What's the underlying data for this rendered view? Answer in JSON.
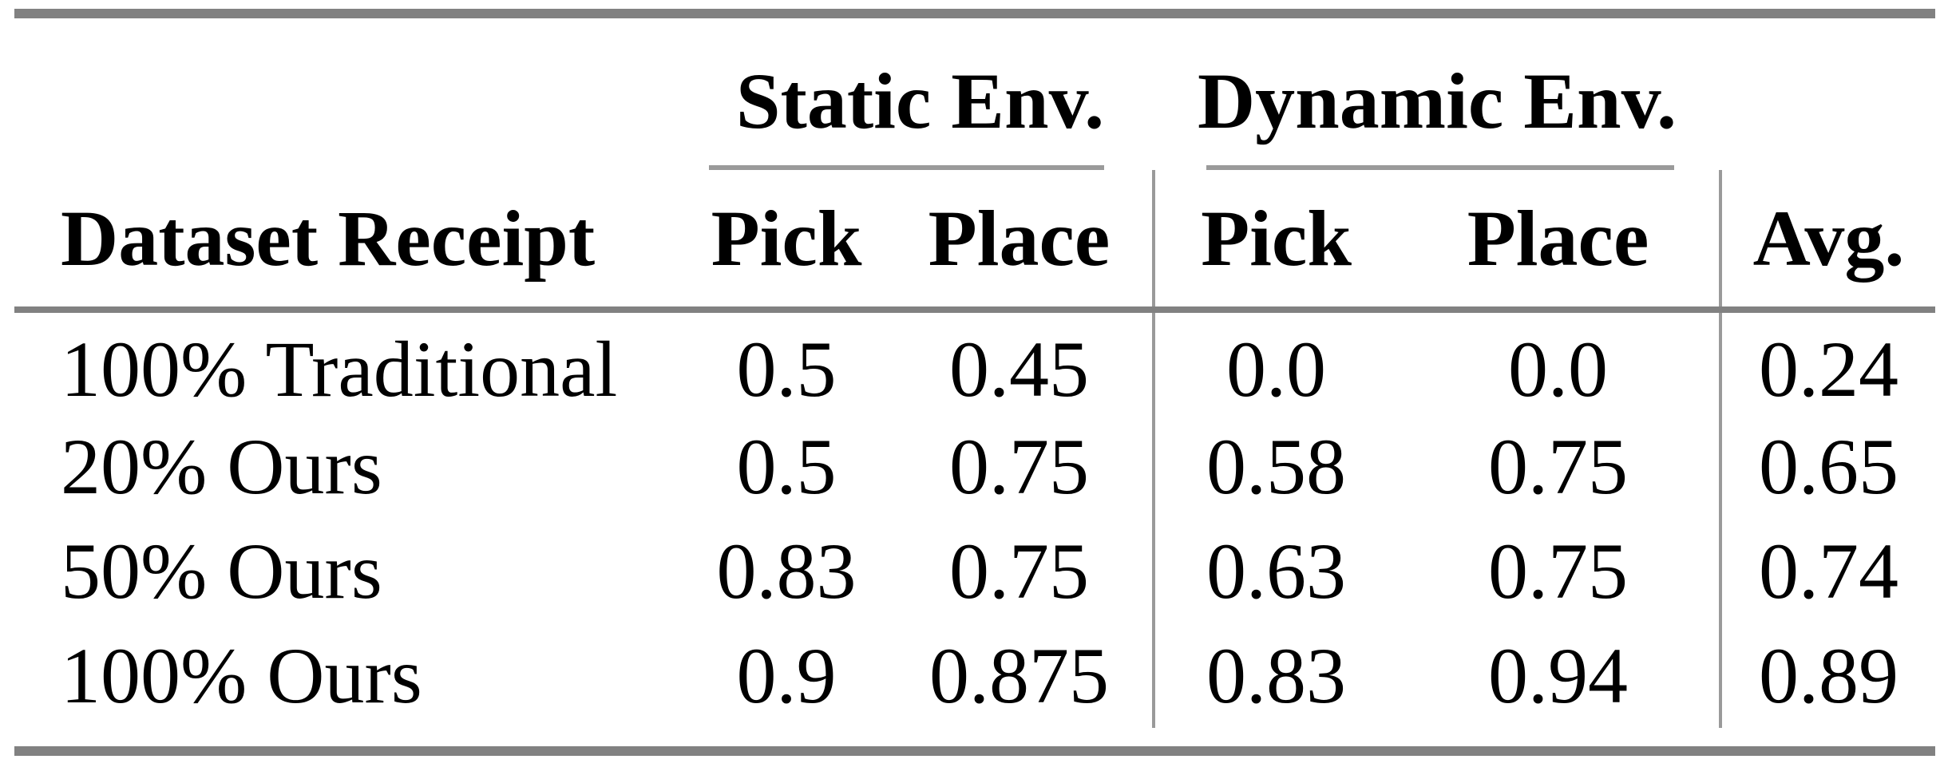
{
  "table": {
    "title_groups": {
      "static": "Static Env.",
      "dynamic": "Dynamic Env."
    },
    "header": {
      "row_label": "Dataset Receipt",
      "static_pick": "Pick",
      "static_place": "Place",
      "dynamic_pick": "Pick",
      "dynamic_place": "Place",
      "avg": "Avg."
    },
    "rows": [
      {
        "label": "100% Traditional",
        "values": [
          "0.5",
          "0.45",
          "0.0",
          "0.0",
          "0.24"
        ]
      },
      {
        "label": "20% Ours",
        "values": [
          "0.5",
          "0.75",
          "0.58",
          "0.75",
          "0.65"
        ]
      },
      {
        "label": "50% Ours",
        "values": [
          "0.83",
          "0.75",
          "0.63",
          "0.75",
          "0.74"
        ]
      },
      {
        "label": "100% Ours",
        "values": [
          "0.9",
          "0.875",
          "0.83",
          "0.94",
          "0.89"
        ]
      }
    ],
    "colors": {
      "rule_thick": "#818181",
      "rule_thin": "#9a9a9a",
      "text": "#000000",
      "background": "#ffffff"
    }
  },
  "chart_data": {
    "type": "table",
    "columns": [
      "Dataset Receipt",
      "Static Env. Pick",
      "Static Env. Place",
      "Dynamic Env. Pick",
      "Dynamic Env. Place",
      "Avg."
    ],
    "rows": [
      [
        "100% Traditional",
        0.5,
        0.45,
        0.0,
        0.0,
        0.24
      ],
      [
        "20% Ours",
        0.5,
        0.75,
        0.58,
        0.75,
        0.65
      ],
      [
        "50% Ours",
        0.83,
        0.75,
        0.63,
        0.75,
        0.74
      ],
      [
        "100% Ours",
        0.9,
        0.875,
        0.83,
        0.94,
        0.89
      ]
    ]
  }
}
